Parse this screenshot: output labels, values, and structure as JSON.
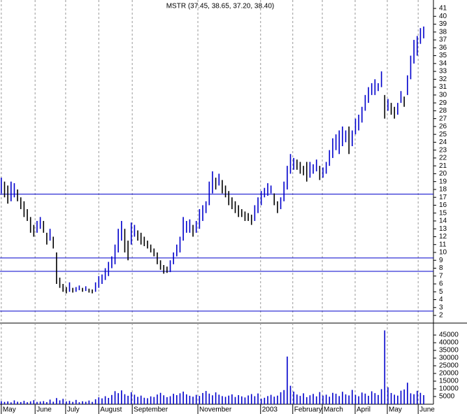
{
  "chart_data": [
    {
      "type": "range-bar",
      "title": "MSTR (37.45, 38.65, 37.20, 38.40)",
      "color": "#0000cc",
      "down_color": "#000000",
      "hline_color": "#0000cc",
      "xlim": [
        -0.4,
        133
      ],
      "xticks": [
        {
          "value": 0,
          "label": "May"
        },
        {
          "value": 10.4,
          "label": "June"
        },
        {
          "value": 19.8,
          "label": "July"
        },
        {
          "value": 30,
          "label": "August"
        },
        {
          "value": 40.3,
          "label": "September"
        },
        {
          "value": 60.5,
          "label": "November"
        },
        {
          "value": 79.8,
          "label": "2003"
        },
        {
          "value": 89.7,
          "label": "February"
        },
        {
          "value": 98.8,
          "label": "March"
        },
        {
          "value": 108.9,
          "label": "April"
        },
        {
          "value": 118.8,
          "label": "May"
        },
        {
          "value": 128.3,
          "label": "June"
        }
      ],
      "ylim": [
        1.38,
        42.07
      ],
      "yticks": [
        2,
        3,
        4,
        5,
        6,
        7,
        8,
        9,
        10,
        11,
        12,
        13,
        14,
        15,
        16,
        17,
        18,
        19,
        20,
        21,
        22,
        23,
        24,
        25,
        26,
        27,
        28,
        29,
        30,
        31,
        32,
        33,
        34,
        35,
        36,
        37,
        38,
        39,
        40,
        41
      ],
      "hlines": [
        17.4,
        9.3,
        7.6,
        2.55
      ],
      "low": [
        17.5,
        17,
        16.2,
        16.5,
        17,
        16.5,
        15.5,
        14.5,
        14,
        12.5,
        12,
        12.5,
        13,
        12.5,
        11,
        11.5,
        10.5,
        6,
        5.5,
        5,
        4.8,
        5,
        4.9,
        5,
        5.2,
        5,
        5.1,
        4.9,
        4.8,
        5,
        5.5,
        6,
        6.5,
        7,
        8,
        8.5,
        10,
        11.5,
        10,
        9,
        11,
        12,
        11.5,
        11,
        10.8,
        10.5,
        10,
        9.5,
        8.5,
        7.8,
        7.3,
        7.4,
        7.5,
        8.5,
        9.5,
        10,
        11.5,
        12.5,
        12.5,
        12,
        12.5,
        13,
        14,
        15,
        16,
        17.5,
        18,
        18.5,
        17.5,
        17,
        16,
        15.5,
        15,
        14.5,
        14.5,
        14,
        14,
        13.5,
        14,
        15,
        16,
        17,
        17.2,
        17.5,
        16,
        15,
        15.5,
        16.5,
        18,
        20,
        20.5,
        20.5,
        20,
        19.8,
        19,
        19.5,
        20,
        20.3,
        19.2,
        19.5,
        20,
        21,
        22,
        23,
        22.5,
        23.5,
        24,
        22.5,
        23.5,
        25,
        25.5,
        26.5,
        28,
        29,
        30,
        30,
        30.5,
        31,
        27,
        28,
        27.5,
        27,
        27.5,
        29,
        28.5,
        30,
        32,
        34,
        35,
        36.5,
        37.2
      ],
      "high": [
        19.5,
        19,
        18.5,
        19,
        18.8,
        18,
        17,
        16.5,
        15.5,
        14.5,
        13.5,
        14,
        14.5,
        14,
        12.5,
        13,
        12,
        10,
        6.8,
        6,
        5.6,
        6.2,
        5.5,
        5.6,
        5.8,
        5.5,
        5.7,
        5.4,
        5.3,
        6.2,
        7,
        7.2,
        8,
        8.8,
        9.5,
        11,
        13,
        14,
        13,
        11.5,
        13.8,
        13.5,
        12.8,
        12.5,
        12,
        11.5,
        11,
        10.5,
        10,
        9,
        8.4,
        8.2,
        9,
        10,
        11,
        12,
        14.5,
        14,
        14.2,
        13.5,
        14,
        15.5,
        16,
        16.5,
        19,
        20.3,
        19.5,
        20,
        19.2,
        18.5,
        17.8,
        17,
        16.5,
        16,
        15.5,
        15.2,
        15,
        14.8,
        16,
        17,
        17.8,
        18.2,
        18.8,
        18.5,
        17.5,
        16.5,
        17,
        19,
        21,
        22.5,
        22,
        21.8,
        21.5,
        21,
        21.5,
        21.5,
        21.2,
        21.8,
        21,
        20.8,
        21.5,
        23,
        24.5,
        25,
        25.5,
        26,
        25.5,
        26,
        25.5,
        27,
        27.5,
        28.5,
        30,
        31,
        31.5,
        32,
        31.5,
        33,
        30,
        29.5,
        29,
        28.5,
        29,
        30.5,
        29.8,
        32.5,
        35,
        37,
        37.5,
        38.5,
        38.7
      ]
    },
    {
      "type": "bar",
      "color": "#0000cc",
      "ylim": [
        0,
        51400
      ],
      "yticks": [
        5000,
        10000,
        15000,
        20000,
        25000,
        30000,
        35000,
        40000,
        45000
      ],
      "values": [
        2000,
        1500,
        1800,
        1200,
        2500,
        1600,
        1400,
        2200,
        1300,
        1800,
        2600,
        1500,
        1700,
        2000,
        1400,
        3000,
        1600,
        4000,
        2500,
        3500,
        1800,
        2200,
        1500,
        2800,
        1300,
        1900,
        1600,
        2400,
        1500,
        3200,
        4500,
        3800,
        5200,
        4100,
        6000,
        8500,
        7200,
        9000,
        6500,
        5500,
        7800,
        6200,
        4800,
        5600,
        4200,
        3900,
        5100,
        4700,
        6300,
        7400,
        5800,
        4600,
        5200,
        6800,
        5900,
        7100,
        8200,
        6400,
        5500,
        4900,
        6100,
        5400,
        7300,
        8600,
        6900,
        5800,
        7700,
        6200,
        5300,
        4800,
        5600,
        6400,
        4700,
        5900,
        5100,
        4400,
        5700,
        6600,
        5200,
        7000,
        3600,
        4200,
        5300,
        6100,
        4900,
        5600,
        7800,
        9200,
        31000,
        12000,
        8200,
        6300,
        5400,
        7100,
        4600,
        5800,
        6700,
        5100,
        7900,
        5600,
        6200,
        4900,
        7400,
        6800,
        5300,
        8100,
        6400,
        5700,
        9300,
        6100,
        5200,
        7600,
        6900,
        5500,
        8400,
        7200,
        6000,
        9800,
        48000,
        11000,
        7300,
        6200,
        5600,
        8800,
        9600,
        14000,
        7100,
        6500,
        8700,
        7400,
        5900
      ]
    }
  ]
}
